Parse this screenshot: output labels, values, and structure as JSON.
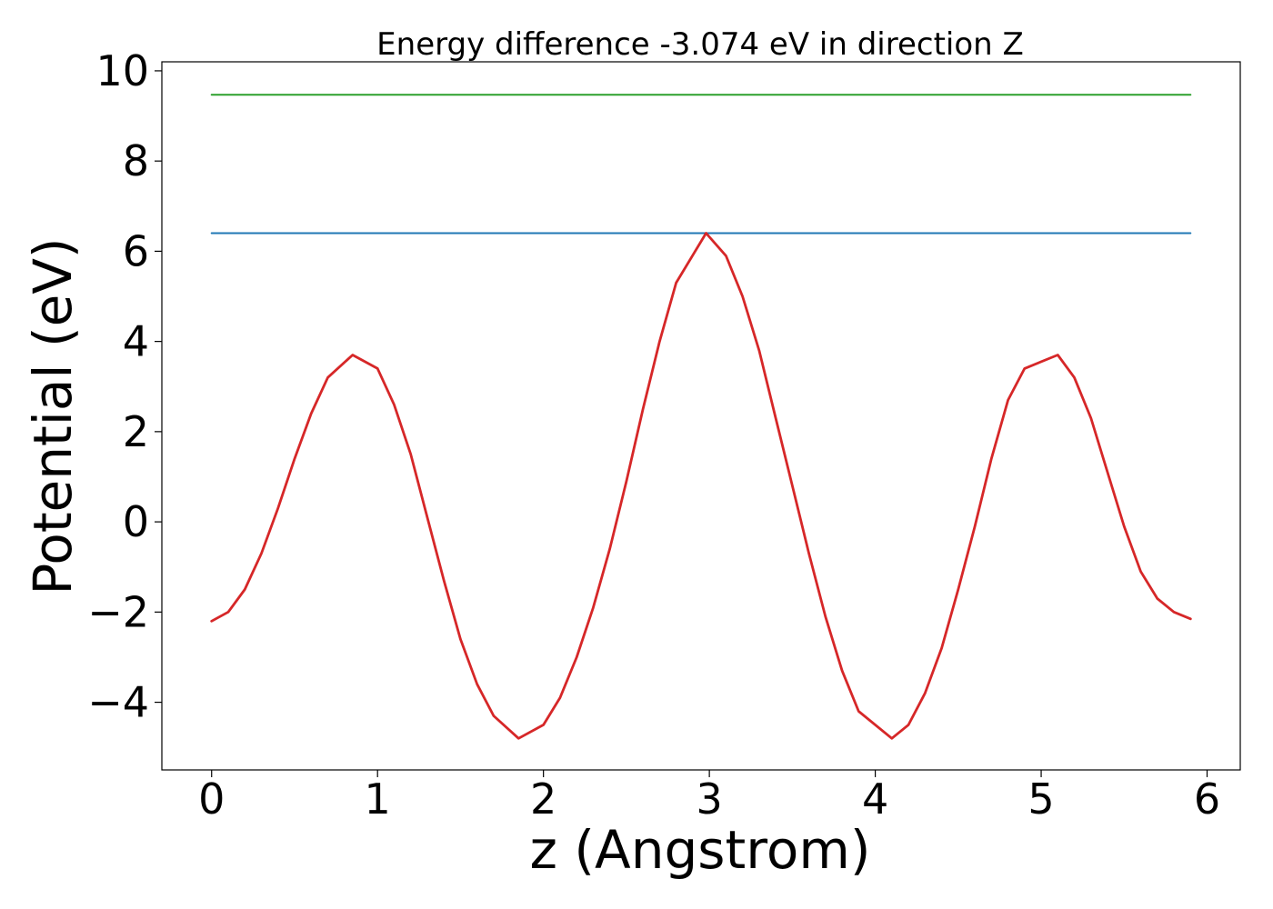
{
  "chart_data": {
    "type": "line",
    "title": "Energy difference -3.074 eV in direction Z",
    "xlabel": "z (Angstrom)",
    "ylabel": "Potential (eV)",
    "xlim": [
      -0.3,
      6.2
    ],
    "ylim": [
      -5.5,
      10.2
    ],
    "xticks": [
      0,
      1,
      2,
      3,
      4,
      5,
      6
    ],
    "xtick_labels": [
      "0",
      "1",
      "2",
      "3",
      "4",
      "5",
      "6"
    ],
    "yticks": [
      -4,
      -2,
      0,
      2,
      4,
      6,
      8,
      10
    ],
    "ytick_labels": [
      "−4",
      "−2",
      "0",
      "2",
      "4",
      "6",
      "8",
      "10"
    ],
    "grid": false,
    "series": [
      {
        "color": "#d62728",
        "x": [
          0,
          0.1,
          0.2,
          0.3,
          0.4,
          0.5,
          0.6,
          0.7,
          0.85,
          1.0,
          1.1,
          1.2,
          1.3,
          1.4,
          1.5,
          1.6,
          1.7,
          1.85,
          2.0,
          2.1,
          2.2,
          2.3,
          2.4,
          2.5,
          2.6,
          2.7,
          2.8,
          2.98,
          3.1,
          3.2,
          3.3,
          3.4,
          3.5,
          3.6,
          3.7,
          3.8,
          3.9,
          4.1,
          4.2,
          4.3,
          4.4,
          4.5,
          4.6,
          4.7,
          4.8,
          4.9,
          5.1,
          5.2,
          5.3,
          5.4,
          5.5,
          5.6,
          5.7,
          5.8,
          5.9
        ],
        "y": [
          -2.2,
          -2.0,
          -1.5,
          -0.7,
          0.3,
          1.4,
          2.4,
          3.2,
          3.7,
          3.4,
          2.6,
          1.5,
          0.1,
          -1.3,
          -2.6,
          -3.6,
          -4.3,
          -4.8,
          -4.5,
          -3.9,
          -3.0,
          -1.9,
          -0.6,
          0.9,
          2.5,
          4.0,
          5.3,
          6.4,
          5.9,
          5.0,
          3.8,
          2.3,
          0.8,
          -0.7,
          -2.1,
          -3.3,
          -4.2,
          -4.8,
          -4.5,
          -3.8,
          -2.8,
          -1.5,
          -0.1,
          1.4,
          2.7,
          3.4,
          3.7,
          3.2,
          2.3,
          1.1,
          -0.1,
          -1.1,
          -1.7,
          -2.0,
          -2.15
        ]
      },
      {
        "color": "#1f77b4",
        "x": [
          0,
          5.9
        ],
        "y": [
          6.4,
          6.4
        ]
      },
      {
        "color": "#2ca02c",
        "x": [
          0,
          5.9
        ],
        "y": [
          9.47,
          9.47
        ]
      }
    ]
  }
}
